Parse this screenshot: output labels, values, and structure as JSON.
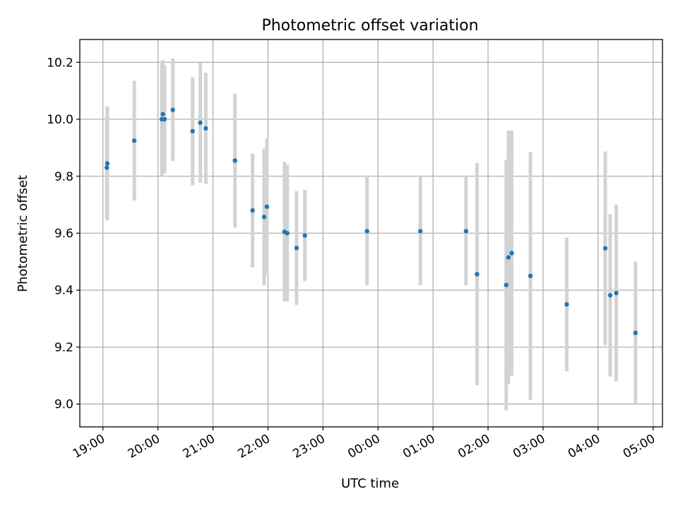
{
  "chart_data": {
    "type": "scatter",
    "title": "Photometric offset variation",
    "xlabel": "UTC time",
    "ylabel": "Photometric offset",
    "x_unit": "hours",
    "xlim": [
      18.58,
      29.17
    ],
    "ylim": [
      8.92,
      10.28
    ],
    "grid": true,
    "x_ticks": [
      {
        "value": 19,
        "label": "19:00"
      },
      {
        "value": 20,
        "label": "20:00"
      },
      {
        "value": 21,
        "label": "21:00"
      },
      {
        "value": 22,
        "label": "22:00"
      },
      {
        "value": 23,
        "label": "23:00"
      },
      {
        "value": 24,
        "label": "00:00"
      },
      {
        "value": 25,
        "label": "01:00"
      },
      {
        "value": 26,
        "label": "02:00"
      },
      {
        "value": 27,
        "label": "03:00"
      },
      {
        "value": 28,
        "label": "04:00"
      },
      {
        "value": 29,
        "label": "05:00"
      }
    ],
    "y_ticks": [
      {
        "value": 9.0,
        "label": "9.0"
      },
      {
        "value": 9.2,
        "label": "9.2"
      },
      {
        "value": 9.4,
        "label": "9.4"
      },
      {
        "value": 9.6,
        "label": "9.6"
      },
      {
        "value": 9.8,
        "label": "9.8"
      },
      {
        "value": 10.0,
        "label": "10.0"
      },
      {
        "value": 10.2,
        "label": "10.2"
      }
    ],
    "colors": {
      "marker": "#1f77b4",
      "errorbar": "#d3d3d3"
    },
    "points": [
      {
        "x": 19.07,
        "y": 9.83,
        "err": 0.18
      },
      {
        "x": 19.08,
        "y": 9.845,
        "err": 0.2
      },
      {
        "x": 19.57,
        "y": 9.925,
        "err": 0.21
      },
      {
        "x": 20.07,
        "y": 10.0,
        "err": 0.2
      },
      {
        "x": 20.09,
        "y": 10.018,
        "err": 0.19
      },
      {
        "x": 20.12,
        "y": 10.0,
        "err": 0.19
      },
      {
        "x": 20.27,
        "y": 10.033,
        "err": 0.18
      },
      {
        "x": 20.63,
        "y": 9.958,
        "err": 0.19
      },
      {
        "x": 20.77,
        "y": 9.988,
        "err": 0.21
      },
      {
        "x": 20.87,
        "y": 9.968,
        "err": 0.195
      },
      {
        "x": 21.4,
        "y": 9.855,
        "err": 0.235
      },
      {
        "x": 21.72,
        "y": 9.68,
        "err": 0.2
      },
      {
        "x": 21.93,
        "y": 9.657,
        "err": 0.24
      },
      {
        "x": 21.98,
        "y": 9.693,
        "err": 0.24
      },
      {
        "x": 22.3,
        "y": 9.605,
        "err": 0.245
      },
      {
        "x": 22.35,
        "y": 9.6,
        "err": 0.24
      },
      {
        "x": 22.52,
        "y": 9.548,
        "err": 0.2
      },
      {
        "x": 22.67,
        "y": 9.592,
        "err": 0.16
      },
      {
        "x": 23.8,
        "y": 9.607,
        "err": 0.19
      },
      {
        "x": 24.77,
        "y": 9.607,
        "err": 0.19
      },
      {
        "x": 25.6,
        "y": 9.607,
        "err": 0.19
      },
      {
        "x": 25.8,
        "y": 9.456,
        "err": 0.39
      },
      {
        "x": 26.33,
        "y": 9.418,
        "err": 0.44
      },
      {
        "x": 26.37,
        "y": 9.515,
        "err": 0.445
      },
      {
        "x": 26.43,
        "y": 9.53,
        "err": 0.43
      },
      {
        "x": 26.77,
        "y": 9.45,
        "err": 0.435
      },
      {
        "x": 27.43,
        "y": 9.35,
        "err": 0.235
      },
      {
        "x": 28.13,
        "y": 9.547,
        "err": 0.34
      },
      {
        "x": 28.22,
        "y": 9.382,
        "err": 0.285
      },
      {
        "x": 28.33,
        "y": 9.39,
        "err": 0.31
      },
      {
        "x": 28.68,
        "y": 9.25,
        "err": 0.25
      }
    ]
  }
}
